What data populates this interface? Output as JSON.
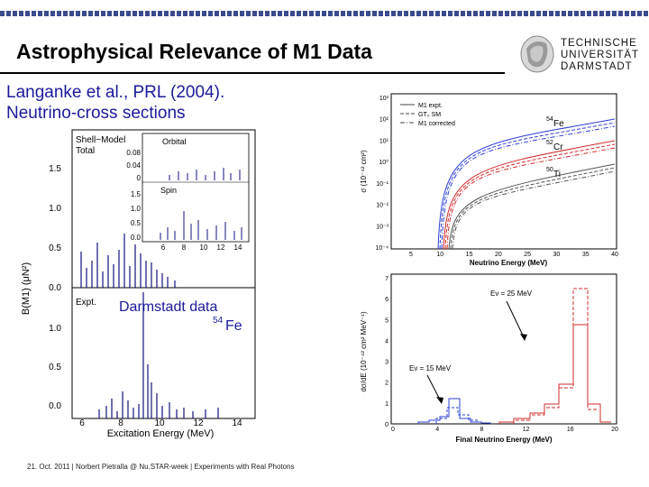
{
  "slide": {
    "title": "Astrophysical Relevance of M1 Data",
    "citation_line1": "Langanke et al., PRL (2004).",
    "citation_line2": "Neutrino-cross sections",
    "footer": "21. Oct. 2011  |  Norbert Pietralla @ Nu.STAR-week  |  Experiments with Real Photons"
  },
  "logo": {
    "lines": [
      "TECHNISCHE",
      "UNIVERSITÄT",
      "DARMSTADT"
    ]
  },
  "bm1_panel": {
    "ylabel": "B(M1) (μN²)",
    "xlabel": "Excitation Energy (MeV)",
    "top_label1": "Shell−Model",
    "top_label2": "Total",
    "bottom_label": "Expt.",
    "inset_orbital": "Orbital",
    "inset_spin": "Spin",
    "overlay_text1": "Darmstadt data",
    "overlay_text2_sup": "54",
    "overlay_text2": "Fe",
    "yticks_top": [
      "1.5",
      "1.0",
      "0.5",
      "0.0"
    ],
    "yticks_bottom": [
      "1.0",
      "0.5",
      "0.0"
    ],
    "xticks": [
      "6",
      "8",
      "10",
      "12",
      "14"
    ],
    "inset_orbital_ticks": [
      "0.08",
      "0.04",
      "0"
    ],
    "inset_spin_ticks": [
      "1.5",
      "1.0",
      "0.5",
      "0.0"
    ],
    "inset_xticks": [
      "6",
      "8",
      "10",
      "12",
      "14"
    ]
  },
  "sigma_panel": {
    "ylabel": "σ (10⁻⁴² cm²)",
    "xlabel": "Neutrino Energy (MeV)",
    "legend": [
      "M1 expt.",
      "GT₀ SM",
      "M1 corrected"
    ],
    "yticks": [
      "10³",
      "10²",
      "10¹",
      "10⁰",
      "10⁻¹",
      "10⁻²",
      "10⁻³",
      "10⁻⁴"
    ],
    "xticks": [
      "5",
      "10",
      "15",
      "20",
      "25",
      "30",
      "35",
      "40"
    ],
    "labels": [
      {
        "sup": "54",
        "text": "Fe"
      },
      {
        "sup": "52",
        "text": "Cr"
      },
      {
        "sup": "50",
        "text": "Ti"
      }
    ]
  },
  "spectrum_panel": {
    "ylabel": "dσ/dE (10⁻⁴² cm² MeV⁻¹)",
    "xlabel": "Final Neutrino Energy (MeV)",
    "yticks": [
      "7",
      "6",
      "5",
      "4",
      "3",
      "2",
      "1",
      "0"
    ],
    "xticks": [
      "0",
      "4",
      "8",
      "12",
      "16",
      "20"
    ],
    "annot_high": "Eν = 25 MeV",
    "annot_low": "Eν = 15 MeV"
  },
  "colors": {
    "blue": "#2b3fd6",
    "red": "#d22b2b",
    "dark_blue": "#101080",
    "title_bar": "#3a4a8c"
  }
}
